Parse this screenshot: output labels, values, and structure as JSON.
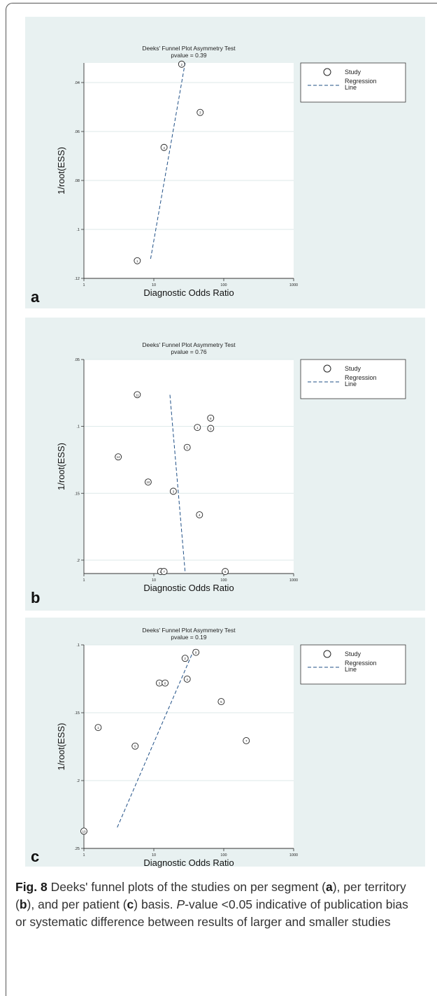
{
  "chart_data": [
    {
      "type": "scatter",
      "panel_label": "a",
      "title": "Deeks' Funnel Plot Asymmetry Test",
      "subtitle": "pvalue =  0.39",
      "xlabel": "Diagnostic Odds Ratio",
      "ylabel": "1/root(ESS)",
      "x_scale": "log",
      "x_ticks": [
        1,
        10,
        100,
        1000
      ],
      "y_ticks": [
        0.04,
        0.06,
        0.08,
        0.1,
        0.12
      ],
      "y_tick_labels": [
        ".04",
        ".06",
        ".08",
        ".1",
        ".12"
      ],
      "ylim": [
        0.12,
        0.032
      ],
      "y_reversed": true,
      "grid": "horizontal",
      "legend": {
        "position": "right",
        "entries": [
          "Study",
          "Regression Line"
        ]
      },
      "points": [
        {
          "label": "1",
          "x": 5.8,
          "y": 0.1128
        },
        {
          "label": "2",
          "x": 25,
          "y": 0.0325
        },
        {
          "label": "3",
          "x": 46,
          "y": 0.0522
        },
        {
          "label": "4",
          "x": 14,
          "y": 0.0665
        }
      ],
      "regression_line": [
        {
          "x": 9,
          "y": 0.112
        },
        {
          "x": 28,
          "y": 0.032
        }
      ]
    },
    {
      "type": "scatter",
      "panel_label": "b",
      "title": "Deeks' Funnel Plot Asymmetry Test",
      "subtitle": "pvalue =  0.76",
      "xlabel": "Diagnostic Odds Ratio",
      "ylabel": "1/root(ESS)",
      "x_scale": "log",
      "x_ticks": [
        1,
        10,
        100,
        1000
      ],
      "y_ticks": [
        0.05,
        0.1,
        0.15,
        0.2
      ],
      "y_tick_labels": [
        ".05",
        ".1",
        ".15",
        ".2"
      ],
      "ylim": [
        0.21,
        0.05
      ],
      "y_reversed": true,
      "grid": "horizontal",
      "legend": {
        "position": "right",
        "entries": [
          "Study",
          "Regression Line"
        ]
      },
      "points": [
        {
          "label": "11",
          "x": 5.8,
          "y": 0.0763
        },
        {
          "label": "8",
          "x": 65,
          "y": 0.0938
        },
        {
          "label": "1",
          "x": 42,
          "y": 0.1008
        },
        {
          "label": "9",
          "x": 65,
          "y": 0.1015
        },
        {
          "label": "5",
          "x": 30,
          "y": 0.1157
        },
        {
          "label": "12",
          "x": 3.1,
          "y": 0.1228
        },
        {
          "label": "10",
          "x": 8.3,
          "y": 0.1416
        },
        {
          "label": "3",
          "x": 19,
          "y": 0.1485
        },
        {
          "label": "4",
          "x": 45,
          "y": 0.1661
        },
        {
          "label": "2",
          "x": 12.5,
          "y": 0.2085
        },
        {
          "label": "7",
          "x": 14,
          "y": 0.2085
        },
        {
          "label": "6",
          "x": 105,
          "y": 0.2085
        }
      ],
      "regression_line": [
        {
          "x": 17,
          "y": 0.0764
        },
        {
          "x": 28,
          "y": 0.2086
        }
      ]
    },
    {
      "type": "scatter",
      "panel_label": "c",
      "title": "Deeks' Funnel Plot Asymmetry Test",
      "subtitle": "pvalue =  0.19",
      "xlabel": "Diagnostic Odds Ratio",
      "ylabel": "1/root(ESS)",
      "x_scale": "log",
      "x_ticks": [
        1,
        10,
        100,
        1000
      ],
      "y_ticks": [
        0.1,
        0.15,
        0.2,
        0.25
      ],
      "y_tick_labels": [
        ".1",
        ".15",
        ".2",
        ".25"
      ],
      "ylim": [
        0.25,
        0.1
      ],
      "y_reversed": true,
      "grid": "horizontal",
      "legend": {
        "position": "right",
        "entries": [
          "Study",
          "Regression Line"
        ]
      },
      "points": [
        {
          "label": "9",
          "x": 40,
          "y": 0.1055
        },
        {
          "label": "2",
          "x": 28,
          "y": 0.1099
        },
        {
          "label": "4",
          "x": 30,
          "y": 0.1252
        },
        {
          "label": "3",
          "x": 12,
          "y": 0.1281
        },
        {
          "label": "8",
          "x": 14.5,
          "y": 0.1281
        },
        {
          "label": "5",
          "x": 92,
          "y": 0.1418
        },
        {
          "label": "1",
          "x": 1.6,
          "y": 0.1609
        },
        {
          "label": "7",
          "x": 210,
          "y": 0.1706
        },
        {
          "label": "6",
          "x": 5.4,
          "y": 0.1746
        },
        {
          "label": "10",
          "x": 1,
          "y": 0.2373
        }
      ],
      "regression_line": [
        {
          "x": 3,
          "y": 0.2345
        },
        {
          "x": 38,
          "y": 0.1028
        }
      ]
    }
  ],
  "caption": {
    "fig_label": "Fig. 8",
    "part1": " Deeks' funnel plots of the studies on per segment (",
    "a": "a",
    "part2": "), per territory (",
    "b": "b",
    "part3": "), and per patient (",
    "c": "c",
    "part4": ") basis. ",
    "p_italic": "P",
    "part5": "-value <0.05 indicative of publication bias or systematic difference between results of larger and smaller studies"
  }
}
